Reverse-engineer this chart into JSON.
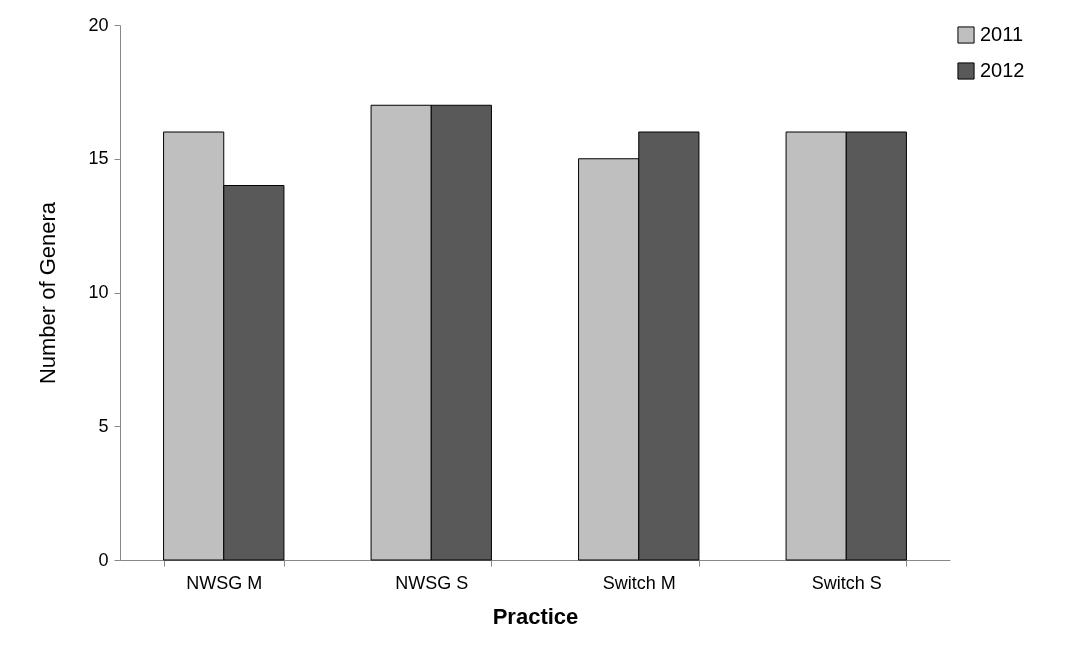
{
  "chart_data": {
    "type": "bar",
    "xlabel": "Practice",
    "ylabel": "Number of Genera",
    "categories": [
      "NWSG M",
      "NWSG S",
      "Switch M",
      "Switch S"
    ],
    "series": [
      {
        "name": "2011",
        "color": "#bfbfbf",
        "values": [
          16,
          17,
          15,
          16
        ]
      },
      {
        "name": "2012",
        "color": "#595959",
        "values": [
          14,
          17,
          16,
          16
        ]
      }
    ],
    "ylim": [
      0,
      20
    ],
    "yticks": [
      0,
      5,
      10,
      15,
      20
    ],
    "grid": false,
    "legend": "right"
  }
}
